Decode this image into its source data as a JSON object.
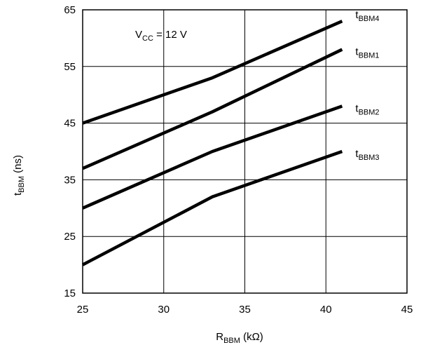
{
  "chart_data": {
    "type": "line",
    "title": "",
    "xlabel": {
      "main": "R",
      "sub": "BBM",
      "rest": " (kΩ)"
    },
    "ylabel": {
      "main": "t",
      "sub": "BBM",
      "rest": " (ns)"
    },
    "xlim": [
      25,
      45
    ],
    "ylim": [
      15,
      65
    ],
    "xticks": [
      25,
      30,
      35,
      40,
      45
    ],
    "yticks": [
      15,
      25,
      35,
      45,
      55,
      65
    ],
    "grid": true,
    "annotation": {
      "main": "V",
      "sub": "CC",
      "rest": " = 12 V"
    },
    "series": [
      {
        "name": "tBBM4",
        "label_main": "t",
        "label_sub": "BBM4",
        "x": [
          25,
          33,
          41
        ],
        "y": [
          45,
          53,
          63
        ]
      },
      {
        "name": "tBBM1",
        "label_main": "t",
        "label_sub": "BBM1",
        "x": [
          25,
          33,
          41
        ],
        "y": [
          37,
          47,
          58
        ]
      },
      {
        "name": "tBBM2",
        "label_main": "t",
        "label_sub": "BBM2",
        "x": [
          25,
          33,
          41
        ],
        "y": [
          30,
          40,
          48
        ]
      },
      {
        "name": "tBBM3",
        "label_main": "t",
        "label_sub": "BBM3",
        "x": [
          25,
          33,
          41
        ],
        "y": [
          20,
          32,
          40
        ]
      }
    ]
  }
}
